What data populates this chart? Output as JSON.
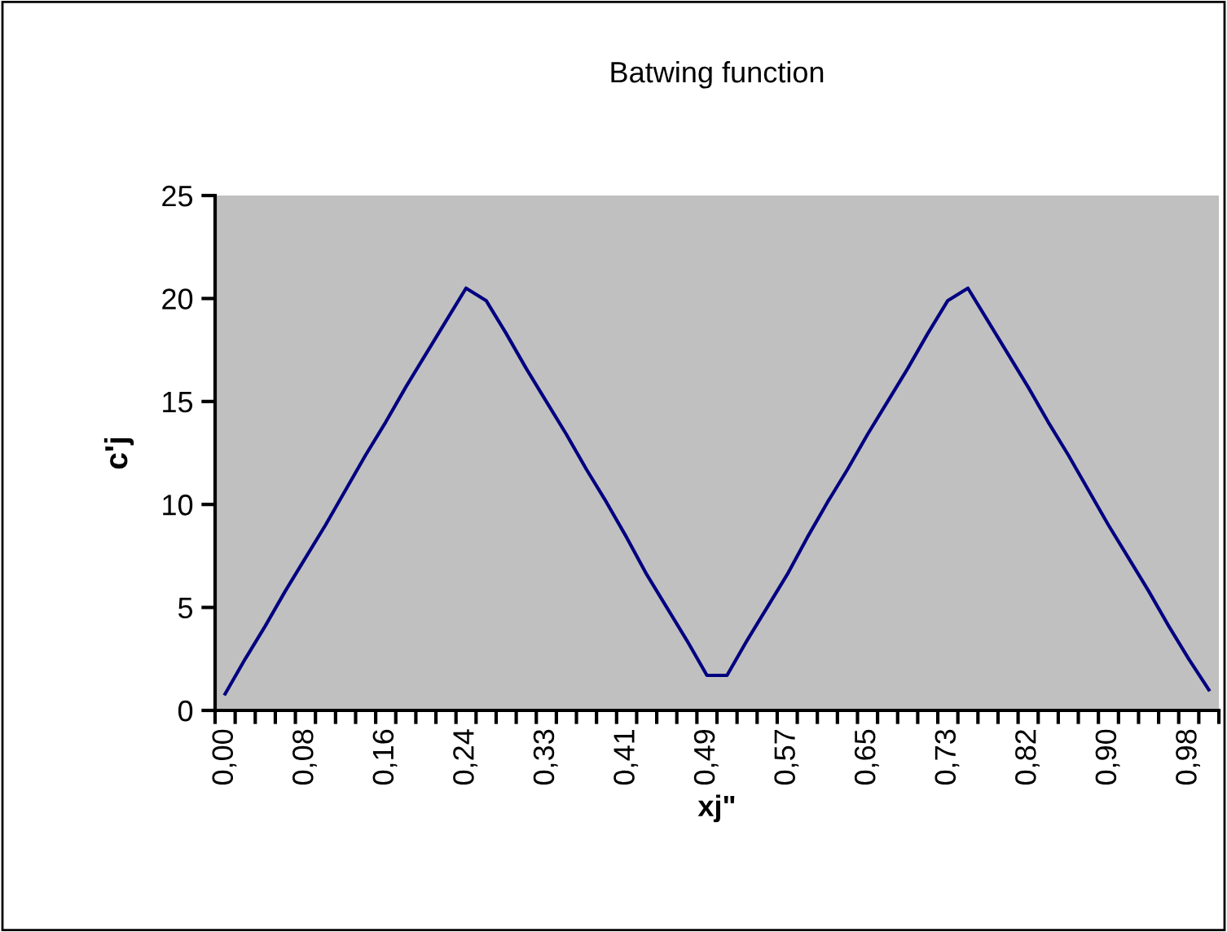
{
  "chart_data": {
    "type": "line",
    "title": "Batwing function",
    "xlabel": "xj\"",
    "ylabel": "c'j",
    "categories": [
      "0,00",
      null,
      null,
      null,
      "0,08",
      null,
      null,
      null,
      "0,16",
      null,
      null,
      null,
      "0,24",
      null,
      null,
      null,
      "0,33",
      null,
      null,
      null,
      "0,41",
      null,
      null,
      null,
      "0,49",
      null,
      null,
      null,
      "0,57",
      null,
      null,
      null,
      "0,65",
      null,
      null,
      null,
      "0,73",
      null,
      null,
      null,
      "0,82",
      null,
      null,
      null,
      "0,90",
      null,
      null,
      null,
      "0,98",
      null
    ],
    "series": [
      {
        "color": "#000080",
        "values": [
          0.8,
          2.5,
          4.1,
          5.8,
          7.4,
          9.0,
          10.7,
          12.4,
          14.0,
          15.7,
          17.3,
          18.9,
          20.5,
          19.9,
          18.3,
          16.6,
          15.0,
          13.4,
          11.7,
          10.1,
          8.4,
          6.6,
          5.0,
          3.4,
          1.7,
          1.7,
          3.4,
          5.0,
          6.6,
          8.4,
          10.1,
          11.7,
          13.4,
          15.0,
          16.6,
          18.3,
          19.9,
          20.5,
          18.9,
          17.3,
          15.7,
          14.0,
          12.4,
          10.7,
          9.0,
          7.4,
          5.8,
          4.1,
          2.5,
          1.0
        ]
      }
    ],
    "ylim": [
      0,
      25
    ],
    "yticks": [
      0,
      5,
      10,
      15,
      20,
      25
    ],
    "grid": false,
    "marker": "none",
    "line_style": "solid"
  }
}
